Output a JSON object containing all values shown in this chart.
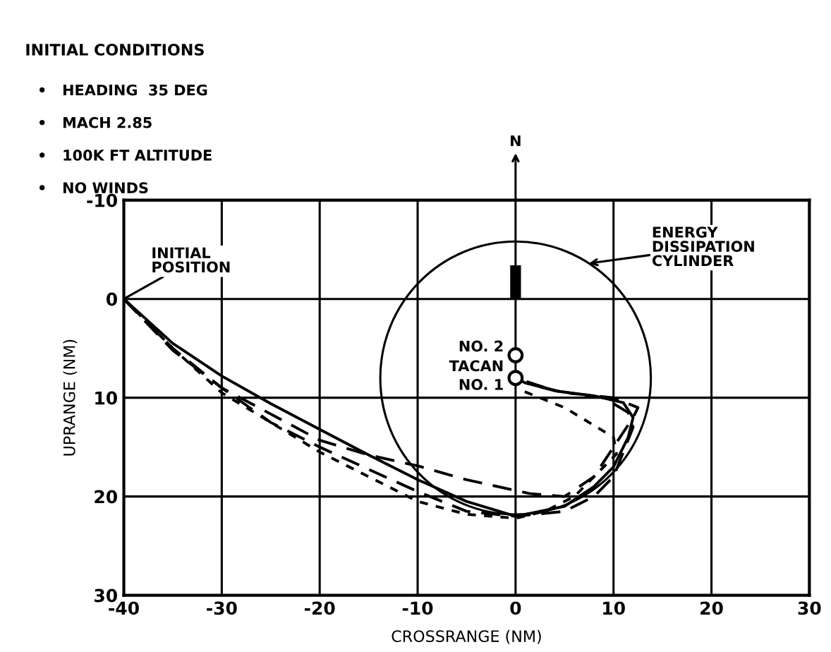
{
  "chart_data": {
    "type": "line",
    "title": "INITIAL CONDITIONS",
    "xlabel": "CROSSRANGE (NM)",
    "ylabel": "UPRANGE (NM)",
    "xlim": [
      -40,
      30
    ],
    "xticks": [
      -40,
      -30,
      -20,
      -10,
      0,
      10,
      20,
      30
    ],
    "ylim": [
      30,
      -10
    ],
    "yticks": [
      -10,
      0,
      10,
      20,
      30
    ],
    "grid": true,
    "legend": false,
    "annotations": [
      "•   HEADING  35 DEG",
      "•   MACH 2.85",
      "•   100K FT ALTITUDE",
      "•   NO WINDS",
      "N",
      {
        "text": "INITIAL\nPOSITION",
        "x": -40,
        "y": 0
      },
      {
        "text": "ENERGY\nDISSIPATION\nCYLINDER",
        "x": 7.5,
        "y": -3.6
      },
      {
        "text": "NO. 2",
        "x": 0,
        "y": 5.7
      },
      {
        "text": "TACAN",
        "x": 0,
        "y": 6.9
      },
      {
        "text": "NO. 1",
        "x": 0,
        "y": 8
      }
    ],
    "series": [
      {
        "color": "#000000",
        "line_style": "solid",
        "x": [
          -40,
          -35,
          -30,
          -25,
          -20,
          -15,
          -10,
          -5,
          0,
          5,
          8,
          10,
          11.5,
          12,
          11,
          8,
          4,
          1,
          0
        ],
        "values": [
          0,
          4.5,
          7.8,
          10.6,
          13.2,
          15.8,
          18.3,
          20.5,
          22,
          21,
          19,
          17,
          14,
          12,
          10.5,
          9.8,
          9.3,
          8.5,
          8
        ]
      },
      {
        "color": "#000000",
        "line_style": "dashed",
        "x": [
          -40,
          -35,
          -30,
          -20,
          -15,
          -10,
          -5,
          1.4,
          5,
          8,
          10,
          12,
          12.5,
          10,
          5,
          1
        ],
        "values": [
          0,
          5,
          9,
          14.3,
          15.8,
          16.9,
          18.3,
          19.7,
          20,
          18,
          15,
          12,
          11,
          10,
          9.5,
          8.5
        ]
      },
      {
        "color": "#000000",
        "line_style": "dashed",
        "x": [
          -40,
          -35,
          -30,
          -25,
          -20,
          -10,
          -5,
          0,
          5,
          8,
          10,
          12,
          11.5,
          9,
          4,
          0
        ],
        "values": [
          0,
          5.2,
          9,
          12.5,
          15,
          19.5,
          21.5,
          22,
          21.5,
          20,
          18,
          13,
          11.5,
          10,
          9.3,
          8
        ]
      },
      {
        "color": "#000000",
        "line_style": "dotted",
        "x": [
          -40,
          -35,
          -30,
          -20,
          -10,
          -5,
          0,
          3,
          6,
          8,
          10.3,
          10,
          5,
          0.7
        ],
        "values": [
          0,
          5,
          9.5,
          15.5,
          20.5,
          21.8,
          22.2,
          21.5,
          20,
          18,
          15.7,
          14,
          11,
          9.3
        ]
      },
      {
        "type": "scatter",
        "color": "#000000",
        "marker": "circle",
        "x": [
          0,
          0
        ],
        "values": [
          5.7,
          8
        ]
      },
      {
        "type": "bar",
        "color": "#000000",
        "x": [
          0
        ],
        "values": [
          -3.4
        ]
      }
    ]
  }
}
